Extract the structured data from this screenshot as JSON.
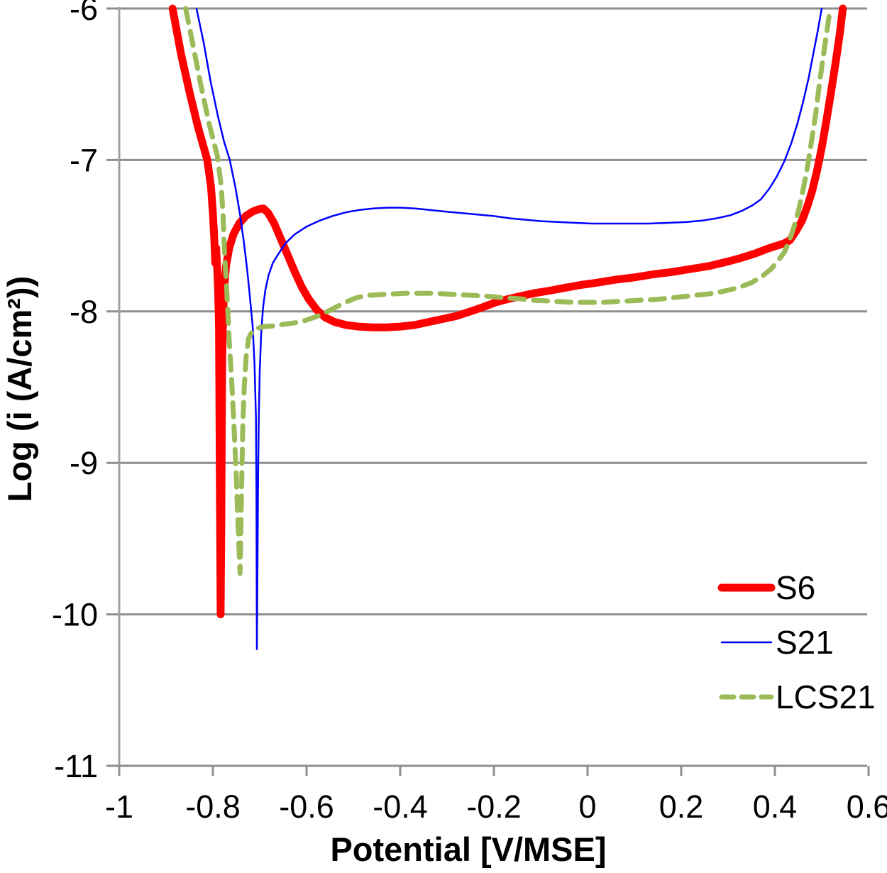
{
  "chart_data": {
    "type": "line",
    "title": "",
    "xlabel": "Potential [V/MSE]",
    "ylabel": "Log (i (A/cm²))",
    "xlim": [
      -1,
      0.6
    ],
    "ylim": [
      -11,
      -6
    ],
    "grid": "horizontal",
    "legend_position": "inside-right-lower",
    "grid_color": "#8e8e8e",
    "axis_color": "#a0a0a0",
    "x_ticks": [
      {
        "value": -1,
        "label": "-1"
      },
      {
        "value": -0.8,
        "label": "-0.8"
      },
      {
        "value": -0.6,
        "label": "-0.6"
      },
      {
        "value": -0.4,
        "label": "-0.4"
      },
      {
        "value": -0.2,
        "label": "-0.2"
      },
      {
        "value": 0,
        "label": "0"
      },
      {
        "value": 0.2,
        "label": "0.2"
      },
      {
        "value": 0.4,
        "label": "0.4"
      },
      {
        "value": 0.6,
        "label": "0.6"
      }
    ],
    "y_ticks": [
      {
        "value": -6,
        "label": "-6"
      },
      {
        "value": -7,
        "label": "-7"
      },
      {
        "value": -8,
        "label": "-8"
      },
      {
        "value": -9,
        "label": "-9"
      },
      {
        "value": -10,
        "label": "-10"
      },
      {
        "value": -11,
        "label": "-11"
      }
    ],
    "series": [
      {
        "name": "S6",
        "color": "#ff0000",
        "style": "solid",
        "width": 11,
        "points": [
          [
            -0.886,
            -6.0
          ],
          [
            -0.868,
            -6.3
          ],
          [
            -0.85,
            -6.55
          ],
          [
            -0.832,
            -6.78
          ],
          [
            -0.812,
            -7.0
          ],
          [
            -0.804,
            -7.18
          ],
          [
            -0.8,
            -7.35
          ],
          [
            -0.797,
            -7.52
          ],
          [
            -0.795,
            -7.68
          ],
          [
            -0.793,
            -7.58
          ],
          [
            -0.791,
            -7.7
          ],
          [
            -0.789,
            -7.85
          ],
          [
            -0.787,
            -8.1
          ],
          [
            -0.786,
            -8.6
          ],
          [
            -0.785,
            -9.2
          ],
          [
            -0.784,
            -9.7
          ],
          [
            -0.7835,
            -10.0
          ],
          [
            -0.782,
            -9.4
          ],
          [
            -0.781,
            -8.8
          ],
          [
            -0.78,
            -8.3
          ],
          [
            -0.778,
            -8.02
          ],
          [
            -0.776,
            -7.86
          ],
          [
            -0.772,
            -7.7
          ],
          [
            -0.765,
            -7.58
          ],
          [
            -0.756,
            -7.49
          ],
          [
            -0.744,
            -7.42
          ],
          [
            -0.73,
            -7.37
          ],
          [
            -0.715,
            -7.34
          ],
          [
            -0.702,
            -7.325
          ],
          [
            -0.692,
            -7.32
          ],
          [
            -0.682,
            -7.35
          ],
          [
            -0.669,
            -7.42
          ],
          [
            -0.655,
            -7.52
          ],
          [
            -0.64,
            -7.63
          ],
          [
            -0.625,
            -7.74
          ],
          [
            -0.61,
            -7.84
          ],
          [
            -0.595,
            -7.92
          ],
          [
            -0.578,
            -7.99
          ],
          [
            -0.56,
            -8.04
          ],
          [
            -0.54,
            -8.07
          ],
          [
            -0.515,
            -8.09
          ],
          [
            -0.49,
            -8.1
          ],
          [
            -0.46,
            -8.105
          ],
          [
            -0.43,
            -8.105
          ],
          [
            -0.4,
            -8.1
          ],
          [
            -0.37,
            -8.09
          ],
          [
            -0.34,
            -8.07
          ],
          [
            -0.31,
            -8.05
          ],
          [
            -0.28,
            -8.03
          ],
          [
            -0.25,
            -8.0
          ],
          [
            -0.222,
            -7.97
          ],
          [
            -0.196,
            -7.94
          ],
          [
            -0.172,
            -7.92
          ],
          [
            -0.145,
            -7.9
          ],
          [
            -0.115,
            -7.88
          ],
          [
            -0.085,
            -7.865
          ],
          [
            -0.05,
            -7.845
          ],
          [
            -0.015,
            -7.825
          ],
          [
            0.02,
            -7.81
          ],
          [
            0.06,
            -7.79
          ],
          [
            0.1,
            -7.775
          ],
          [
            0.14,
            -7.755
          ],
          [
            0.18,
            -7.74
          ],
          [
            0.22,
            -7.72
          ],
          [
            0.26,
            -7.7
          ],
          [
            0.3,
            -7.67
          ],
          [
            0.33,
            -7.645
          ],
          [
            0.36,
            -7.615
          ],
          [
            0.385,
            -7.585
          ],
          [
            0.405,
            -7.565
          ],
          [
            0.42,
            -7.55
          ],
          [
            0.432,
            -7.53
          ],
          [
            0.445,
            -7.47
          ],
          [
            0.458,
            -7.4
          ],
          [
            0.47,
            -7.3
          ],
          [
            0.48,
            -7.2
          ],
          [
            0.49,
            -7.07
          ],
          [
            0.5,
            -6.92
          ],
          [
            0.51,
            -6.74
          ],
          [
            0.52,
            -6.55
          ],
          [
            0.53,
            -6.35
          ],
          [
            0.539,
            -6.16
          ],
          [
            0.545,
            -6.0
          ]
        ]
      },
      {
        "name": "S21",
        "color": "#0000ff",
        "style": "solid",
        "width": 2.5,
        "points": [
          [
            -0.835,
            -6.0
          ],
          [
            -0.82,
            -6.22
          ],
          [
            -0.805,
            -6.48
          ],
          [
            -0.79,
            -6.7
          ],
          [
            -0.776,
            -6.88
          ],
          [
            -0.764,
            -7.0
          ],
          [
            -0.752,
            -7.18
          ],
          [
            -0.742,
            -7.36
          ],
          [
            -0.734,
            -7.54
          ],
          [
            -0.727,
            -7.72
          ],
          [
            -0.721,
            -7.9
          ],
          [
            -0.715,
            -8.1
          ],
          [
            -0.711,
            -8.35
          ],
          [
            -0.708,
            -8.7
          ],
          [
            -0.707,
            -9.2
          ],
          [
            -0.7065,
            -9.75
          ],
          [
            -0.706,
            -10.23
          ],
          [
            -0.7045,
            -9.6
          ],
          [
            -0.7035,
            -9.1
          ],
          [
            -0.702,
            -8.7
          ],
          [
            -0.7,
            -8.4
          ],
          [
            -0.697,
            -8.15
          ],
          [
            -0.693,
            -7.98
          ],
          [
            -0.688,
            -7.86
          ],
          [
            -0.681,
            -7.76
          ],
          [
            -0.672,
            -7.68
          ],
          [
            -0.66,
            -7.62
          ],
          [
            -0.645,
            -7.55
          ],
          [
            -0.625,
            -7.49
          ],
          [
            -0.6,
            -7.44
          ],
          [
            -0.572,
            -7.4
          ],
          [
            -0.545,
            -7.37
          ],
          [
            -0.515,
            -7.345
          ],
          [
            -0.487,
            -7.33
          ],
          [
            -0.458,
            -7.32
          ],
          [
            -0.428,
            -7.315
          ],
          [
            -0.398,
            -7.315
          ],
          [
            -0.368,
            -7.32
          ],
          [
            -0.338,
            -7.33
          ],
          [
            -0.305,
            -7.34
          ],
          [
            -0.27,
            -7.35
          ],
          [
            -0.235,
            -7.36
          ],
          [
            -0.2,
            -7.37
          ],
          [
            -0.165,
            -7.385
          ],
          [
            -0.13,
            -7.395
          ],
          [
            -0.095,
            -7.405
          ],
          [
            -0.06,
            -7.41
          ],
          [
            -0.025,
            -7.415
          ],
          [
            0.01,
            -7.42
          ],
          [
            0.05,
            -7.42
          ],
          [
            0.09,
            -7.42
          ],
          [
            0.13,
            -7.42
          ],
          [
            0.17,
            -7.415
          ],
          [
            0.21,
            -7.41
          ],
          [
            0.245,
            -7.4
          ],
          [
            0.275,
            -7.385
          ],
          [
            0.305,
            -7.365
          ],
          [
            0.33,
            -7.335
          ],
          [
            0.352,
            -7.3
          ],
          [
            0.37,
            -7.26
          ],
          [
            0.388,
            -7.19
          ],
          [
            0.404,
            -7.11
          ],
          [
            0.42,
            -7.01
          ],
          [
            0.435,
            -6.89
          ],
          [
            0.448,
            -6.76
          ],
          [
            0.46,
            -6.62
          ],
          [
            0.472,
            -6.46
          ],
          [
            0.482,
            -6.3
          ],
          [
            0.492,
            -6.14
          ],
          [
            0.5,
            -6.0
          ]
        ]
      },
      {
        "name": "LCS21",
        "color": "#9bbb59",
        "style": "dashed",
        "width": 7,
        "points": [
          [
            -0.858,
            -6.0
          ],
          [
            -0.842,
            -6.25
          ],
          [
            -0.826,
            -6.5
          ],
          [
            -0.808,
            -6.76
          ],
          [
            -0.79,
            -6.98
          ],
          [
            -0.782,
            -7.18
          ],
          [
            -0.778,
            -7.38
          ],
          [
            -0.776,
            -7.55
          ],
          [
            -0.774,
            -7.68
          ],
          [
            -0.771,
            -7.82
          ],
          [
            -0.768,
            -8.0
          ],
          [
            -0.765,
            -8.2
          ],
          [
            -0.76,
            -8.45
          ],
          [
            -0.755,
            -8.75
          ],
          [
            -0.75,
            -9.1
          ],
          [
            -0.746,
            -9.42
          ],
          [
            -0.743,
            -9.65
          ],
          [
            -0.742,
            -9.73
          ],
          [
            -0.74,
            -9.4
          ],
          [
            -0.738,
            -9.05
          ],
          [
            -0.736,
            -8.75
          ],
          [
            -0.733,
            -8.5
          ],
          [
            -0.729,
            -8.3
          ],
          [
            -0.724,
            -8.18
          ],
          [
            -0.716,
            -8.13
          ],
          [
            -0.705,
            -8.11
          ],
          [
            -0.69,
            -8.1
          ],
          [
            -0.67,
            -8.095
          ],
          [
            -0.648,
            -8.085
          ],
          [
            -0.625,
            -8.075
          ],
          [
            -0.603,
            -8.06
          ],
          [
            -0.58,
            -8.035
          ],
          [
            -0.558,
            -8.005
          ],
          [
            -0.536,
            -7.97
          ],
          [
            -0.514,
            -7.935
          ],
          [
            -0.494,
            -7.91
          ],
          [
            -0.474,
            -7.895
          ],
          [
            -0.45,
            -7.89
          ],
          [
            -0.42,
            -7.885
          ],
          [
            -0.39,
            -7.88
          ],
          [
            -0.36,
            -7.88
          ],
          [
            -0.33,
            -7.88
          ],
          [
            -0.3,
            -7.885
          ],
          [
            -0.27,
            -7.89
          ],
          [
            -0.24,
            -7.895
          ],
          [
            -0.21,
            -7.9
          ],
          [
            -0.18,
            -7.91
          ],
          [
            -0.15,
            -7.915
          ],
          [
            -0.12,
            -7.925
          ],
          [
            -0.09,
            -7.93
          ],
          [
            -0.06,
            -7.935
          ],
          [
            -0.03,
            -7.94
          ],
          [
            0.0,
            -7.94
          ],
          [
            0.03,
            -7.94
          ],
          [
            0.06,
            -7.935
          ],
          [
            0.09,
            -7.93
          ],
          [
            0.12,
            -7.925
          ],
          [
            0.15,
            -7.92
          ],
          [
            0.18,
            -7.91
          ],
          [
            0.21,
            -7.9
          ],
          [
            0.24,
            -7.89
          ],
          [
            0.27,
            -7.88
          ],
          [
            0.3,
            -7.86
          ],
          [
            0.325,
            -7.84
          ],
          [
            0.35,
            -7.81
          ],
          [
            0.372,
            -7.77
          ],
          [
            0.392,
            -7.72
          ],
          [
            0.408,
            -7.66
          ],
          [
            0.42,
            -7.61
          ],
          [
            0.43,
            -7.54
          ],
          [
            0.44,
            -7.45
          ],
          [
            0.45,
            -7.34
          ],
          [
            0.46,
            -7.2
          ],
          [
            0.47,
            -7.04
          ],
          [
            0.478,
            -6.88
          ],
          [
            0.487,
            -6.7
          ],
          [
            0.495,
            -6.5
          ],
          [
            0.503,
            -6.32
          ],
          [
            0.511,
            -6.15
          ],
          [
            0.518,
            -6.0
          ]
        ]
      }
    ]
  }
}
